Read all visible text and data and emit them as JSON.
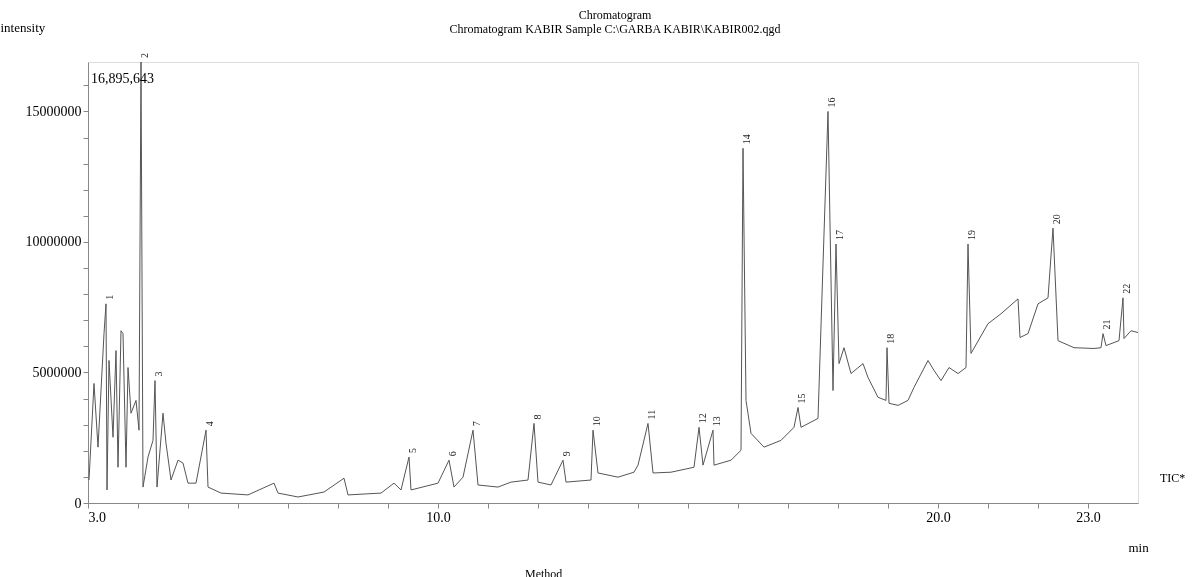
{
  "chart_data": {
    "type": "line",
    "title": "Chromatogram",
    "subtitle": "Chromatogram KABIR Sample C:\\GARBA KABIR\\KABIR002.qgd",
    "xlabel": "min",
    "ylabel": "intensity",
    "x": [
      3.02,
      3.12,
      3.2,
      3.32,
      3.36,
      3.38,
      3.42,
      3.5,
      3.56,
      3.6,
      3.66,
      3.7,
      3.76,
      3.8,
      3.86,
      3.96,
      4.02,
      4.06,
      4.1,
      4.2,
      4.3,
      4.34,
      4.38,
      4.5,
      4.56,
      4.66,
      4.8,
      4.9,
      5.0,
      5.16,
      5.36,
      5.4,
      5.66,
      6.2,
      6.72,
      6.8,
      7.2,
      7.72,
      8.12,
      8.2,
      8.86,
      9.12,
      9.26,
      9.42,
      9.46,
      10.0,
      10.22,
      10.32,
      10.5,
      10.7,
      10.8,
      11.2,
      11.46,
      11.8,
      11.92,
      12.0,
      12.26,
      12.5,
      12.56,
      13.06,
      13.1,
      13.2,
      13.6,
      13.92,
      14.0,
      14.2,
      14.3,
      14.66,
      15.12,
      15.22,
      15.3,
      15.5,
      15.52,
      15.86,
      16.06,
      16.1,
      16.16,
      16.26,
      16.52,
      16.86,
      17.12,
      17.2,
      17.26,
      17.6,
      17.8,
      17.9,
      17.96,
      18.02,
      18.12,
      18.26,
      18.5,
      18.6,
      18.8,
      18.96,
      18.98,
      19.02,
      19.2,
      19.4,
      19.52,
      19.8,
      19.92,
      20.06,
      20.22,
      20.4,
      20.56,
      20.6,
      20.66,
      21.0,
      21.26,
      21.6,
      21.64,
      21.8,
      22.0,
      22.2,
      22.3,
      22.4,
      22.72,
      23.12,
      23.26,
      23.3,
      23.36,
      23.62,
      23.7,
      23.72,
      23.86,
      24.0
    ],
    "series": [
      {
        "color": "#555555",
        "values": [
          880000,
          4580000,
          2140000,
          6490000,
          7630000,
          500000,
          5460000,
          2520000,
          5840000,
          1370000,
          6600000,
          6490000,
          1370000,
          5190000,
          3440000,
          3930000,
          2790000,
          16895643,
          610000,
          1760000,
          2400000,
          4690000,
          610000,
          3440000,
          2290000,
          880000,
          1640000,
          1530000,
          760000,
          760000,
          2790000,
          610000,
          380000,
          310000,
          760000,
          380000,
          230000,
          420000,
          950000,
          310000,
          380000,
          760000,
          500000,
          1760000,
          500000,
          760000,
          1640000,
          610000,
          990000,
          2790000,
          690000,
          610000,
          800000,
          880000,
          3050000,
          800000,
          690000,
          1640000,
          800000,
          880000,
          2790000,
          1150000,
          990000,
          1180000,
          1450000,
          3050000,
          1150000,
          1180000,
          1370000,
          2900000,
          1450000,
          2790000,
          1450000,
          1640000,
          2020000,
          13590000,
          3930000,
          2670000,
          2140000,
          2400000,
          2900000,
          3660000,
          2900000,
          3240000,
          15000000,
          4310000,
          9920000,
          5340000,
          5950000,
          4960000,
          5340000,
          4810000,
          4050000,
          3930000,
          5950000,
          3820000,
          3740000,
          3930000,
          4430000,
          5460000,
          5080000,
          4690000,
          5190000,
          4960000,
          5190000,
          9920000,
          5730000,
          6870000,
          7250000,
          7820000,
          6340000,
          6490000,
          7630000,
          7860000,
          10530000,
          6220000,
          5950000,
          5920000,
          5950000,
          6490000,
          6030000,
          6220000,
          7860000,
          6300000,
          6600000,
          6530000
        ]
      }
    ],
    "xlim": [
      3.0,
      24.0
    ],
    "xticks": [
      {
        "value": 3,
        "label": "3.0"
      },
      {
        "value": 4,
        "label": null
      },
      {
        "value": 5,
        "label": null
      },
      {
        "value": 6,
        "label": null
      },
      {
        "value": 7,
        "label": null
      },
      {
        "value": 8,
        "label": null
      },
      {
        "value": 9,
        "label": null
      },
      {
        "value": 10,
        "label": "10.0"
      },
      {
        "value": 11,
        "label": null
      },
      {
        "value": 12,
        "label": null
      },
      {
        "value": 13,
        "label": null
      },
      {
        "value": 14,
        "label": null
      },
      {
        "value": 15,
        "label": null
      },
      {
        "value": 16,
        "label": null
      },
      {
        "value": 17,
        "label": null
      },
      {
        "value": 18,
        "label": null
      },
      {
        "value": 19,
        "label": null
      },
      {
        "value": 20,
        "label": "20.0"
      },
      {
        "value": 21,
        "label": null
      },
      {
        "value": 22,
        "label": null
      },
      {
        "value": 23,
        "label": "23.0"
      }
    ],
    "ylim": [
      0,
      16895643
    ],
    "yticks": [
      0,
      {
        "value": 1000000,
        "label": null
      },
      {
        "value": 2000000,
        "label": null
      },
      {
        "value": 3000000,
        "label": null
      },
      {
        "value": 4000000,
        "label": null
      },
      5000000,
      {
        "value": 6000000,
        "label": null
      },
      {
        "value": 7000000,
        "label": null
      },
      {
        "value": 8000000,
        "label": null
      },
      {
        "value": 9000000,
        "label": null
      },
      10000000,
      {
        "value": 11000000,
        "label": null
      },
      {
        "value": 12000000,
        "label": null
      },
      {
        "value": 13000000,
        "label": null
      },
      {
        "value": 14000000,
        "label": null
      },
      15000000,
      {
        "value": 16000000,
        "label": null
      }
    ],
    "grid": false,
    "legend": false,
    "marker": "none",
    "line_style": "solid",
    "annotations": [
      "16,895,643",
      "TIC*",
      "Method",
      {
        "text": "1",
        "x": 3.36,
        "y": 7630000
      },
      {
        "text": "2",
        "x": 4.06,
        "y": 16895643
      },
      {
        "text": "3",
        "x": 4.34,
        "y": 4690000
      },
      {
        "text": "4",
        "x": 5.36,
        "y": 2790000
      },
      {
        "text": "5",
        "x": 9.42,
        "y": 1760000
      },
      {
        "text": "6",
        "x": 10.22,
        "y": 1640000
      },
      {
        "text": "7",
        "x": 10.7,
        "y": 2790000
      },
      {
        "text": "8",
        "x": 11.92,
        "y": 3050000
      },
      {
        "text": "9",
        "x": 12.5,
        "y": 1640000
      },
      {
        "text": "10",
        "x": 13.1,
        "y": 2790000
      },
      {
        "text": "11",
        "x": 14.2,
        "y": 3050000
      },
      {
        "text": "12",
        "x": 15.22,
        "y": 2900000
      },
      {
        "text": "13",
        "x": 15.5,
        "y": 2790000
      },
      {
        "text": "14",
        "x": 16.1,
        "y": 13590000
      },
      {
        "text": "15",
        "x": 17.2,
        "y": 3660000
      },
      {
        "text": "16",
        "x": 17.8,
        "y": 15000000
      },
      {
        "text": "17",
        "x": 17.96,
        "y": 9920000
      },
      {
        "text": "18",
        "x": 18.98,
        "y": 5950000
      },
      {
        "text": "19",
        "x": 20.6,
        "y": 9920000
      },
      {
        "text": "20",
        "x": 22.3,
        "y": 10530000
      },
      {
        "text": "21",
        "x": 23.3,
        "y": 6490000
      },
      {
        "text": "22",
        "x": 23.7,
        "y": 7860000
      }
    ]
  }
}
